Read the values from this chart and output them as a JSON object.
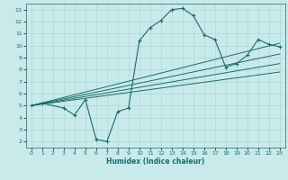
{
  "title": "",
  "xlabel": "Humidex (Indice chaleur)",
  "bg_color": "#c8eaea",
  "line_color": "#1a6b6b",
  "grid_color": "#b0d8d8",
  "xlim": [
    -0.5,
    23.5
  ],
  "ylim": [
    1.5,
    13.5
  ],
  "xticks": [
    0,
    1,
    2,
    3,
    4,
    5,
    6,
    7,
    8,
    9,
    10,
    11,
    12,
    13,
    14,
    15,
    16,
    17,
    18,
    19,
    20,
    21,
    22,
    23
  ],
  "yticks": [
    2,
    3,
    4,
    5,
    6,
    7,
    8,
    9,
    10,
    11,
    12,
    13
  ],
  "curve1_x": [
    0,
    1,
    3,
    4,
    5,
    6,
    7,
    8,
    9,
    10,
    11,
    12,
    13,
    14,
    15,
    16,
    17,
    18,
    19,
    20,
    21,
    22,
    23
  ],
  "curve1_y": [
    5.0,
    5.2,
    4.8,
    4.2,
    5.5,
    2.2,
    2.0,
    4.5,
    4.8,
    10.4,
    11.5,
    12.1,
    13.0,
    13.1,
    12.5,
    10.9,
    10.5,
    8.2,
    8.5,
    9.2,
    10.5,
    10.1,
    9.9
  ],
  "line1_x": [
    0,
    23
  ],
  "line1_y": [
    5.0,
    10.2
  ],
  "line2_x": [
    0,
    23
  ],
  "line2_y": [
    5.0,
    9.3
  ],
  "line3_x": [
    0,
    23
  ],
  "line3_y": [
    5.0,
    8.5
  ],
  "line4_x": [
    0,
    23
  ],
  "line4_y": [
    5.0,
    7.8
  ],
  "xlabel_fontsize": 5.5,
  "tick_fontsize": 4.5
}
